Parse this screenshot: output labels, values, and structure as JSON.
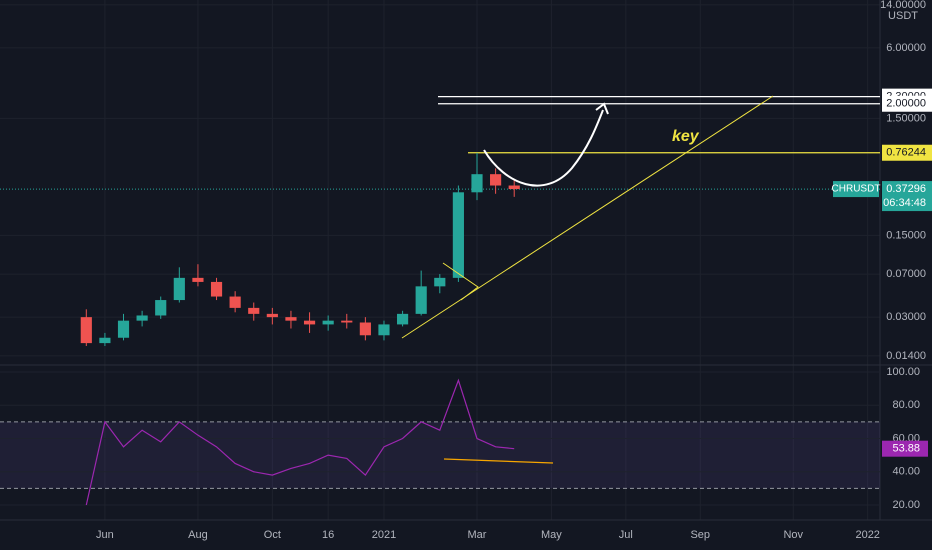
{
  "chart_data": {
    "type": "candlestick",
    "symbol": "CHRUSDT",
    "currency": "USDT",
    "countdown": "06:34:48",
    "annotation": "key",
    "log_scale": true,
    "grid": true,
    "up_color": "#26a69a",
    "down_color": "#ef5350",
    "categories": [
      null,
      "Jun",
      null,
      null,
      null,
      null,
      "Aug",
      null,
      null,
      null,
      "Oct",
      null,
      null,
      "16",
      null,
      null,
      "2021",
      null,
      null,
      null,
      null,
      "Mar",
      null,
      null,
      null,
      "May",
      null,
      null,
      null,
      "Jul",
      null,
      null,
      null,
      "Sep",
      null,
      null,
      null,
      null,
      "Nov",
      null,
      null,
      null,
      "2022"
    ],
    "open": [
      0.03,
      0.018,
      0.02,
      0.028,
      0.031,
      0.042,
      0.065,
      0.06,
      0.045,
      0.036,
      0.032,
      0.03,
      0.028,
      0.026,
      0.028,
      0.027,
      0.021,
      0.026,
      0.032,
      0.055,
      0.065,
      0.35,
      0.5,
      0.4,
      null,
      null,
      null,
      null,
      null,
      null,
      null,
      null,
      null,
      null,
      null,
      null,
      null,
      null,
      null,
      null,
      null,
      null,
      null
    ],
    "high": [
      0.035,
      0.022,
      0.032,
      0.034,
      0.045,
      0.08,
      0.085,
      0.065,
      0.05,
      0.04,
      0.036,
      0.034,
      0.033,
      0.031,
      0.032,
      0.03,
      0.028,
      0.034,
      0.075,
      0.07,
      0.4,
      0.76,
      0.56,
      0.45,
      null,
      null,
      null,
      null,
      null,
      null,
      null,
      null,
      null,
      null,
      null,
      null,
      null,
      null,
      null,
      null,
      null,
      null,
      null
    ],
    "low": [
      0.017,
      0.017,
      0.019,
      0.025,
      0.029,
      0.04,
      0.055,
      0.042,
      0.033,
      0.028,
      0.026,
      0.024,
      0.022,
      0.023,
      0.024,
      0.019,
      0.019,
      0.025,
      0.031,
      0.048,
      0.06,
      0.3,
      0.34,
      0.32,
      null,
      null,
      null,
      null,
      null,
      null,
      null,
      null,
      null,
      null,
      null,
      null,
      null,
      null,
      null,
      null,
      null,
      null,
      null
    ],
    "close": [
      0.018,
      0.02,
      0.028,
      0.031,
      0.042,
      0.065,
      0.06,
      0.045,
      0.036,
      0.032,
      0.03,
      0.028,
      0.026,
      0.028,
      0.027,
      0.021,
      0.026,
      0.032,
      0.055,
      0.065,
      0.35,
      0.5,
      0.4,
      0.37296,
      null,
      null,
      null,
      null,
      null,
      null,
      null,
      null,
      null,
      null,
      null,
      null,
      null,
      null,
      null,
      null,
      null,
      null,
      null
    ],
    "ylim": [
      0.0117,
      15.4
    ],
    "yticks": [
      {
        "value": 14,
        "label": "14.00000"
      },
      {
        "value": 6,
        "label": "6.00000"
      },
      {
        "value": 1.5,
        "label": "1.50000"
      },
      {
        "value": 0.15,
        "label": "0.15000"
      },
      {
        "value": 0.07,
        "label": "0.07000"
      },
      {
        "value": 0.03,
        "label": "0.03000"
      },
      {
        "value": 0.014,
        "label": "0.01400"
      }
    ],
    "last_price": 0.37296,
    "last_price_color": "#26a69a",
    "levels": [
      {
        "value": 2.3,
        "label": "2.30000",
        "color": "#ffffff"
      },
      {
        "value": 2.0,
        "label": "2.00000",
        "color": "#ffffff"
      },
      {
        "value": 0.76244,
        "label": "0.76244",
        "color": "#f0e442"
      }
    ],
    "rsi": {
      "color": "#9c27b0",
      "values": [
        20,
        70,
        55,
        65,
        58,
        70,
        62,
        55,
        45,
        40,
        38,
        42,
        45,
        50,
        48,
        38,
        55,
        60,
        70,
        65,
        95,
        60,
        55,
        53.88,
        null,
        null,
        null,
        null,
        null,
        null,
        null,
        null,
        null,
        null,
        null,
        null,
        null,
        null,
        null,
        null,
        null,
        null,
        null
      ],
      "last_value": 53.88,
      "ylim": [
        11,
        104.2
      ],
      "yticks": [
        {
          "value": 100,
          "label": "100.00"
        },
        {
          "value": 80,
          "label": "80.00"
        },
        {
          "value": 60,
          "label": "60.00"
        },
        {
          "value": 40,
          "label": "40.00"
        },
        {
          "value": 20,
          "label": "20.00"
        }
      ],
      "band": [
        30,
        70
      ]
    }
  }
}
